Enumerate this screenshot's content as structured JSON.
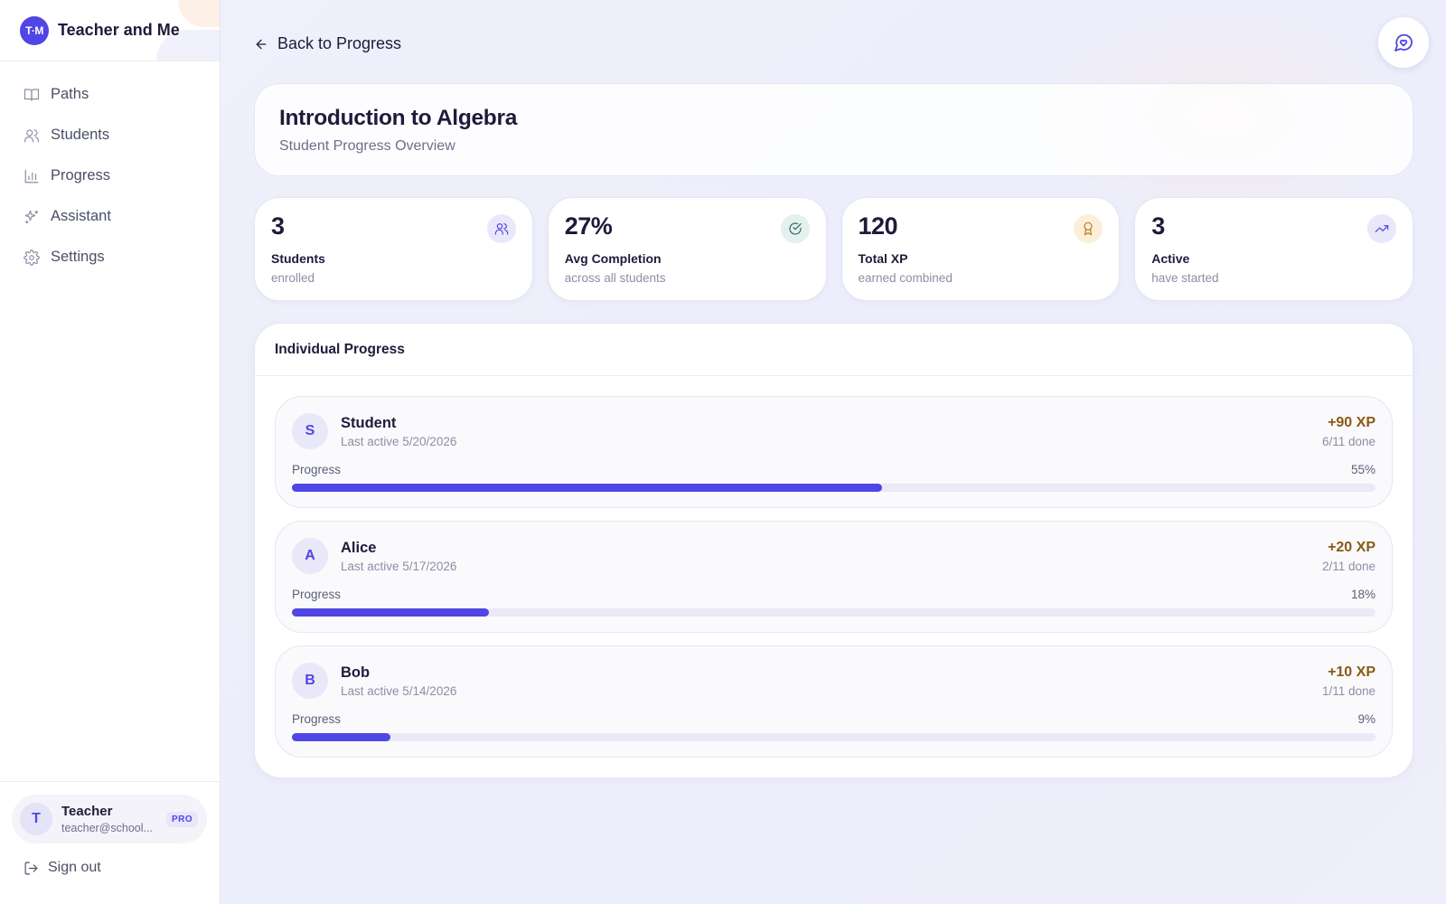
{
  "app": {
    "logo_text": "T·M",
    "name": "Teacher and Me"
  },
  "nav": [
    {
      "label": "Paths",
      "icon": "book-icon"
    },
    {
      "label": "Students",
      "icon": "users-icon"
    },
    {
      "label": "Progress",
      "icon": "bar-chart-icon"
    },
    {
      "label": "Assistant",
      "icon": "sparkles-icon"
    },
    {
      "label": "Settings",
      "icon": "gear-icon"
    }
  ],
  "user": {
    "initial": "T",
    "name": "Teacher",
    "email": "teacher@school...",
    "badge": "PRO"
  },
  "sign_out": "Sign out",
  "back_link": "Back to Progress",
  "header": {
    "title": "Introduction to Algebra",
    "subtitle": "Student Progress Overview"
  },
  "stats": [
    {
      "value": "3",
      "label": "Students",
      "sub": "enrolled",
      "icon": "users-icon",
      "icon_bg": "#e9e8f8",
      "icon_color": "#4f46e5"
    },
    {
      "value": "27%",
      "label": "Avg Completion",
      "sub": "across all students",
      "icon": "check-circle-icon",
      "icon_bg": "#e3f0ee",
      "icon_color": "#2f6f62"
    },
    {
      "value": "120",
      "label": "Total XP",
      "sub": "earned combined",
      "icon": "award-icon",
      "icon_bg": "#fcefd9",
      "icon_color": "#b7791f"
    },
    {
      "value": "3",
      "label": "Active",
      "sub": "have started",
      "icon": "trending-up-icon",
      "icon_bg": "#e9e8f8",
      "icon_color": "#4f46e5"
    }
  ],
  "progress_panel": {
    "title": "Individual Progress",
    "progress_label": "Progress",
    "students": [
      {
        "initial": "S",
        "name": "Student",
        "last_active": "Last active 5/20/2026",
        "xp": "+90 XP",
        "done": "6/11 done",
        "percent_text": "55%",
        "percent": 0.545
      },
      {
        "initial": "A",
        "name": "Alice",
        "last_active": "Last active 5/17/2026",
        "xp": "+20 XP",
        "done": "2/11 done",
        "percent_text": "18%",
        "percent": 0.182
      },
      {
        "initial": "B",
        "name": "Bob",
        "last_active": "Last active 5/14/2026",
        "xp": "+10 XP",
        "done": "1/11 done",
        "percent_text": "9%",
        "percent": 0.091
      }
    ]
  },
  "colors": {
    "accent": "#4f46e5",
    "xp": "#8a5a12"
  }
}
